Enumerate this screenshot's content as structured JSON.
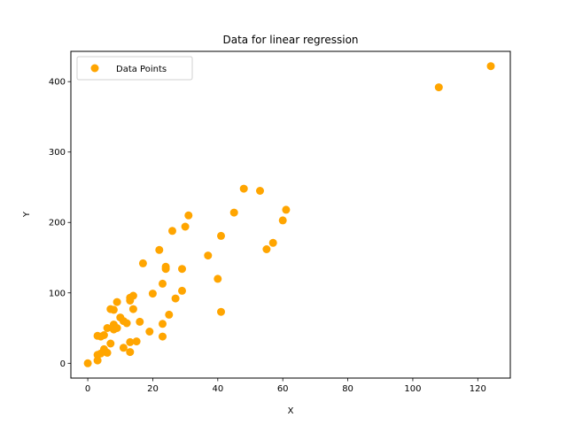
{
  "chart_data": {
    "type": "scatter",
    "title": "Data for linear regression",
    "xlabel": "X",
    "ylabel": "Y",
    "xlim": [
      -5.2,
      130
    ],
    "ylim": [
      -21,
      443
    ],
    "xticks": [
      0,
      20,
      40,
      60,
      80,
      100,
      120
    ],
    "yticks": [
      0,
      100,
      200,
      300,
      400
    ],
    "grid": false,
    "legend": {
      "position": "top-left"
    },
    "series": [
      {
        "name": "Data Points",
        "color": "#ffa500",
        "points": [
          [
            0,
            0
          ],
          [
            3,
            4
          ],
          [
            3,
            12
          ],
          [
            3,
            39
          ],
          [
            4,
            38
          ],
          [
            4,
            14
          ],
          [
            5,
            40
          ],
          [
            5,
            20
          ],
          [
            6,
            50
          ],
          [
            6,
            15
          ],
          [
            7,
            28
          ],
          [
            7,
            77
          ],
          [
            8,
            55
          ],
          [
            8,
            48
          ],
          [
            8,
            76
          ],
          [
            9,
            87
          ],
          [
            9,
            50
          ],
          [
            10,
            65
          ],
          [
            11,
            60
          ],
          [
            11,
            22
          ],
          [
            12,
            57
          ],
          [
            13,
            93
          ],
          [
            13,
            89
          ],
          [
            13,
            30
          ],
          [
            13,
            16
          ],
          [
            14,
            96
          ],
          [
            14,
            77
          ],
          [
            15,
            31
          ],
          [
            16,
            59
          ],
          [
            17,
            142
          ],
          [
            19,
            45
          ],
          [
            20,
            99
          ],
          [
            22,
            161
          ],
          [
            23,
            113
          ],
          [
            23,
            56
          ],
          [
            23,
            38
          ],
          [
            24,
            137
          ],
          [
            24,
            134
          ],
          [
            25,
            69
          ],
          [
            26,
            188
          ],
          [
            27,
            92
          ],
          [
            29,
            134
          ],
          [
            29,
            103
          ],
          [
            30,
            194
          ],
          [
            31,
            210
          ],
          [
            37,
            153
          ],
          [
            40,
            120
          ],
          [
            41,
            181
          ],
          [
            41,
            73
          ],
          [
            45,
            214
          ],
          [
            48,
            248
          ],
          [
            53,
            245
          ],
          [
            55,
            162
          ],
          [
            57,
            171
          ],
          [
            60,
            203
          ],
          [
            61,
            218
          ],
          [
            108,
            392
          ],
          [
            124,
            422
          ]
        ]
      }
    ]
  }
}
